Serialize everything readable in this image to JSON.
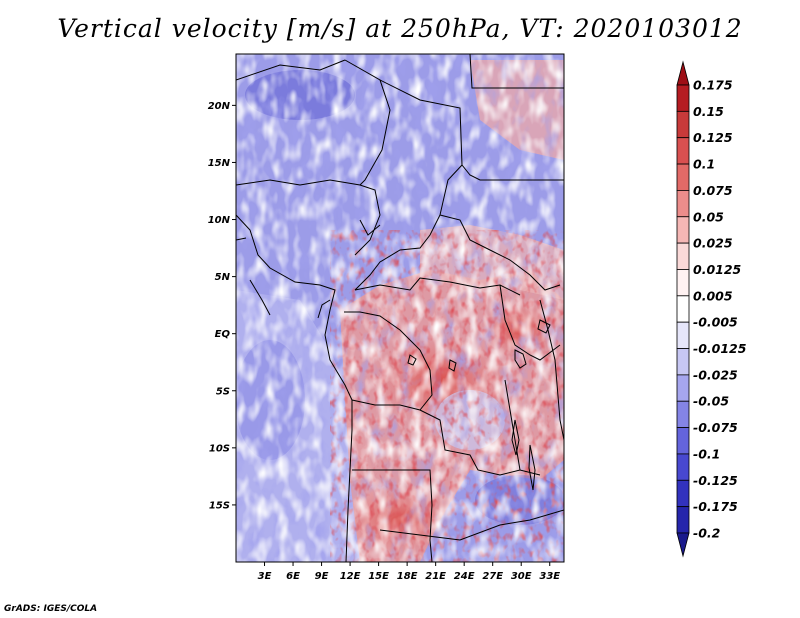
{
  "title": "Vertical velocity [m/s] at 250hPa, VT: 2020103012",
  "credit": "GrADS: IGES/COLA",
  "map": {
    "lat_ticks": [
      "20N",
      "15N",
      "10N",
      "5N",
      "EQ",
      "5S",
      "10S",
      "15S"
    ],
    "lon_ticks": [
      "3E",
      "6E",
      "9E",
      "12E",
      "15E",
      "18E",
      "21E",
      "24E",
      "27E",
      "30E",
      "33E"
    ],
    "lat_range": [
      -20,
      24.5
    ],
    "lon_range": [
      0,
      34.5
    ]
  },
  "colorbar": {
    "labels": [
      "0.175",
      "0.15",
      "0.125",
      "0.1",
      "0.075",
      "0.05",
      "0.025",
      "0.0125",
      "0.005",
      "-0.005",
      "-0.0125",
      "-0.025",
      "-0.05",
      "-0.075",
      "-0.1",
      "-0.125",
      "-0.175",
      "-0.2"
    ],
    "colors": [
      "#9e0f16",
      "#b51c22",
      "#c83a3a",
      "#d95050",
      "#e26a67",
      "#ec8d8b",
      "#f5b7b5",
      "#fad9d8",
      "#fff2f2",
      "#ffffff",
      "#e6e6fa",
      "#c7c7f3",
      "#a6a6ee",
      "#8484e6",
      "#6464dc",
      "#4848d0",
      "#3232be",
      "#2525ab",
      "#1a1a8c"
    ]
  }
}
